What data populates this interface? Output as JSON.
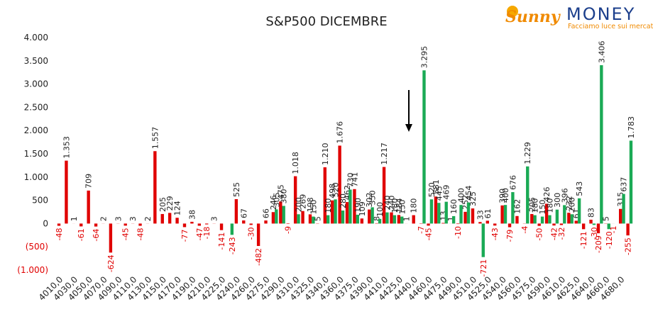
{
  "chart_data": {
    "type": "bar",
    "title": "S&P500 DICEMBRE",
    "logo": {
      "brand_a": "Sunny",
      "brand_b": "MONEY",
      "tagline": "Facciamo luce sui mercati"
    },
    "categories": [
      "4010,0",
      null,
      "4030,0",
      null,
      "4050,0",
      null,
      "4070,0",
      null,
      "4090,0",
      null,
      "4110,0",
      null,
      "4130,0",
      null,
      "4150,0",
      null,
      "4170,0",
      null,
      "4190,0",
      null,
      "4210,0",
      null,
      "4225,0",
      null,
      "4240,0",
      null,
      "4260,0",
      null,
      "4275,0",
      null,
      "4290,0",
      null,
      "4310,0",
      null,
      "4325,0",
      null,
      "4340,0",
      null,
      "4360,0",
      null,
      "4375,0",
      null,
      "4390,0",
      null,
      "4410,0",
      null,
      "4425,0",
      null,
      "4440,0",
      null,
      "4460,0",
      null,
      "4475,0",
      null,
      "4490,0",
      null,
      "4510,0",
      null,
      "4525,0",
      null,
      "4540,0",
      null,
      "4560,0",
      null,
      "4575,0",
      null,
      "4590,0",
      null,
      "4610,0",
      null,
      "4625,0",
      null,
      "4640,0",
      null,
      "4660,0",
      null,
      "4680,0",
      null
    ],
    "series": [
      {
        "color": "#e00000",
        "values": [
          -48,
          1353,
          1,
          -61,
          709,
          -64,
          2,
          -624,
          3,
          -45,
          3,
          -48,
          2,
          1557,
          205,
          229,
          124,
          -77,
          38,
          -47,
          -18,
          3,
          -141,
          0,
          525,
          67,
          -30,
          -482,
          66,
          246,
          475,
          -9,
          1018,
          269,
          198,
          5,
          1210,
          498,
          1676,
          462,
          741,
          109,
          302,
          8,
          1217,
          240,
          184,
          1,
          180,
          -7,
          -45,
          581,
          13,
          1,
          -10,
          252,
          325,
          33,
          61,
          -43,
          390,
          -79,
          162,
          -4,
          205,
          -50,
          426,
          -42,
          -32,
          232,
          61,
          -121,
          83,
          -209,
          5,
          -1,
          315,
          -255
        ],
        "value_labels": [
          null,
          "1.353",
          null,
          null,
          null,
          null,
          null,
          null,
          null,
          null,
          null,
          null,
          null,
          "1.557",
          null,
          null,
          null,
          null,
          null,
          null,
          null,
          null,
          null,
          null,
          null,
          null,
          null,
          null,
          null,
          null,
          null,
          null,
          "1.018",
          null,
          null,
          null,
          "1.210",
          null,
          "1.676",
          null,
          null,
          null,
          null,
          null,
          "1.217",
          null,
          null,
          null,
          null,
          null,
          null,
          null,
          null,
          null,
          null,
          null,
          null,
          null,
          null,
          null,
          null,
          null,
          null,
          null,
          null,
          null,
          null,
          null,
          null,
          null,
          null,
          null,
          null,
          null,
          null,
          null,
          null,
          null
        ]
      },
      {
        "color": "#1aaa55",
        "values": [
          0,
          0,
          0,
          0,
          0,
          0,
          0,
          0,
          0,
          0,
          0,
          0,
          0,
          0,
          0,
          0,
          0,
          0,
          0,
          0,
          0,
          0,
          0,
          -243,
          0,
          0,
          0,
          0,
          0,
          305,
          380,
          0,
          200,
          0,
          150,
          0,
          180,
          520,
          280,
          730,
          190,
          0,
          350,
          100,
          240,
          180,
          150,
          0,
          0,
          3295,
          520,
          445,
          469,
          160,
          400,
          454,
          0,
          -721,
          0,
          0,
          400,
          676,
          0,
          1229,
          180,
          150,
          180,
          300,
          396,
          200,
          543,
          0,
          -30,
          3406,
          -120,
          0,
          637,
          1783
        ],
        "value_labels": [
          null,
          null,
          null,
          null,
          null,
          null,
          null,
          null,
          null,
          null,
          null,
          null,
          null,
          null,
          null,
          null,
          null,
          null,
          null,
          null,
          null,
          null,
          null,
          null,
          null,
          null,
          null,
          null,
          null,
          null,
          null,
          null,
          null,
          null,
          null,
          null,
          null,
          null,
          null,
          null,
          null,
          null,
          null,
          null,
          null,
          null,
          null,
          null,
          null,
          "3.295",
          null,
          null,
          null,
          null,
          null,
          null,
          null,
          null,
          null,
          null,
          null,
          null,
          null,
          "1.229",
          null,
          null,
          null,
          null,
          null,
          null,
          null,
          null,
          null,
          "3.406",
          null,
          null,
          null,
          "1.783"
        ]
      }
    ],
    "ylim": [
      -1000,
      4000
    ],
    "yticks": [
      {
        "value": 4000,
        "label": "4.000"
      },
      {
        "value": 3500,
        "label": "3.500"
      },
      {
        "value": 3000,
        "label": "3.000"
      },
      {
        "value": 2500,
        "label": "2.500"
      },
      {
        "value": 2000,
        "label": "2.000"
      },
      {
        "value": 1500,
        "label": "1.500"
      },
      {
        "value": 1000,
        "label": "1.000"
      },
      500,
      0,
      {
        "value": -500,
        "label": "(500)"
      },
      {
        "value": -1000,
        "label": "(1.000)"
      }
    ]
  }
}
